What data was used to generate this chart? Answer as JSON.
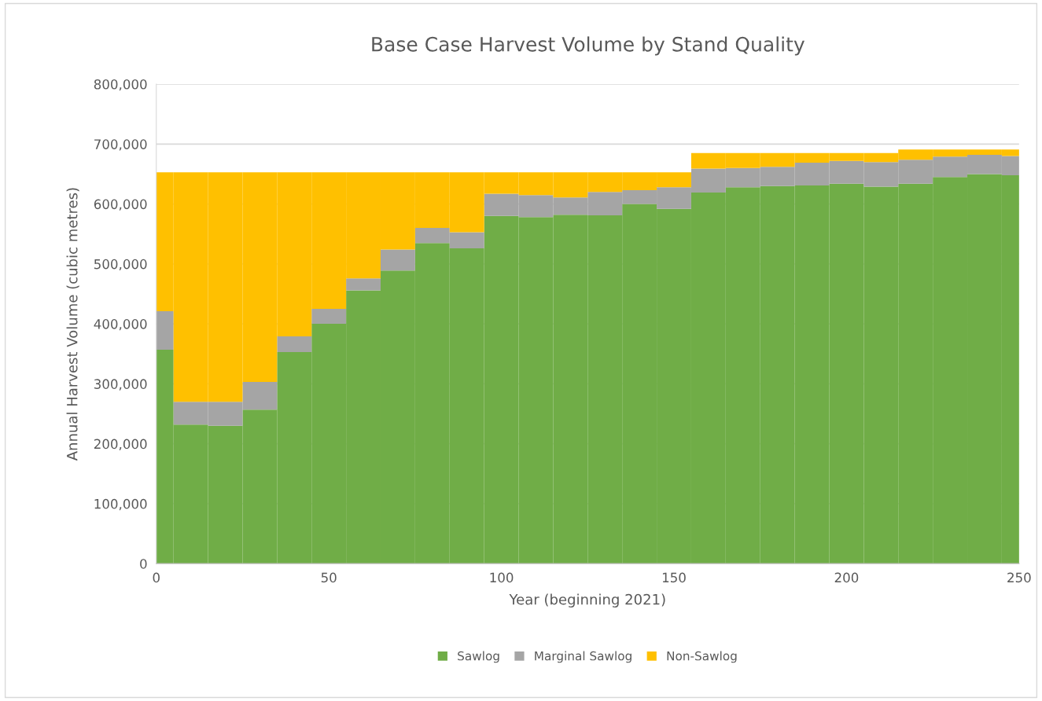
{
  "chart_data": {
    "type": "bar",
    "stacked": true,
    "title": "Base Case Harvest Volume by Stand Quality",
    "xlabel": "Year (beginning 2021)",
    "ylabel": "Annual Harvest Volume (cubic metres)",
    "x": [
      0,
      10,
      20,
      30,
      40,
      50,
      60,
      70,
      80,
      90,
      100,
      110,
      120,
      130,
      140,
      150,
      160,
      170,
      180,
      190,
      200,
      210,
      220,
      230,
      240,
      250
    ],
    "series": [
      {
        "name": "Sawlog",
        "color": "#70ad47",
        "values": [
          357000,
          232000,
          230000,
          257000,
          353000,
          400000,
          456000,
          489000,
          535000,
          526000,
          580000,
          578000,
          582000,
          581000,
          600000,
          592000,
          619000,
          628000,
          630000,
          631000,
          634000,
          629000,
          634000,
          645000,
          650000,
          648000
        ]
      },
      {
        "name": "Marginal Sawlog",
        "color": "#a5a5a5",
        "values": [
          64000,
          38000,
          40000,
          46000,
          26000,
          25000,
          20000,
          35000,
          25000,
          27000,
          37000,
          37000,
          29000,
          39000,
          23000,
          36000,
          40000,
          32000,
          32000,
          38000,
          38000,
          41000,
          40000,
          34000,
          32000,
          32000
        ]
      },
      {
        "name": "Non-Sawlog",
        "color": "#ffc000",
        "values": [
          232000,
          383000,
          383000,
          350000,
          274000,
          228000,
          177000,
          129000,
          93000,
          100000,
          36000,
          38000,
          42000,
          33000,
          30000,
          25000,
          26000,
          25000,
          23000,
          16000,
          13000,
          15000,
          17000,
          12000,
          9000,
          11000
        ]
      }
    ],
    "xlim": [
      0,
      250
    ],
    "xticks": [
      0,
      50,
      100,
      150,
      200,
      250
    ],
    "ylim": [
      0,
      800000
    ],
    "yticks": [
      {
        "value": 0,
        "label": "0"
      },
      {
        "value": 100000,
        "label": "100,000"
      },
      {
        "value": 200000,
        "label": "200,000"
      },
      {
        "value": 300000,
        "label": "300,000"
      },
      {
        "value": 400000,
        "label": "400,000"
      },
      {
        "value": 500000,
        "label": "500,000"
      },
      {
        "value": 600000,
        "label": "600,000"
      },
      {
        "value": 700000,
        "label": "700,000"
      },
      {
        "value": 800000,
        "label": "800,000"
      }
    ],
    "grid": "y",
    "legend": "bottom"
  }
}
